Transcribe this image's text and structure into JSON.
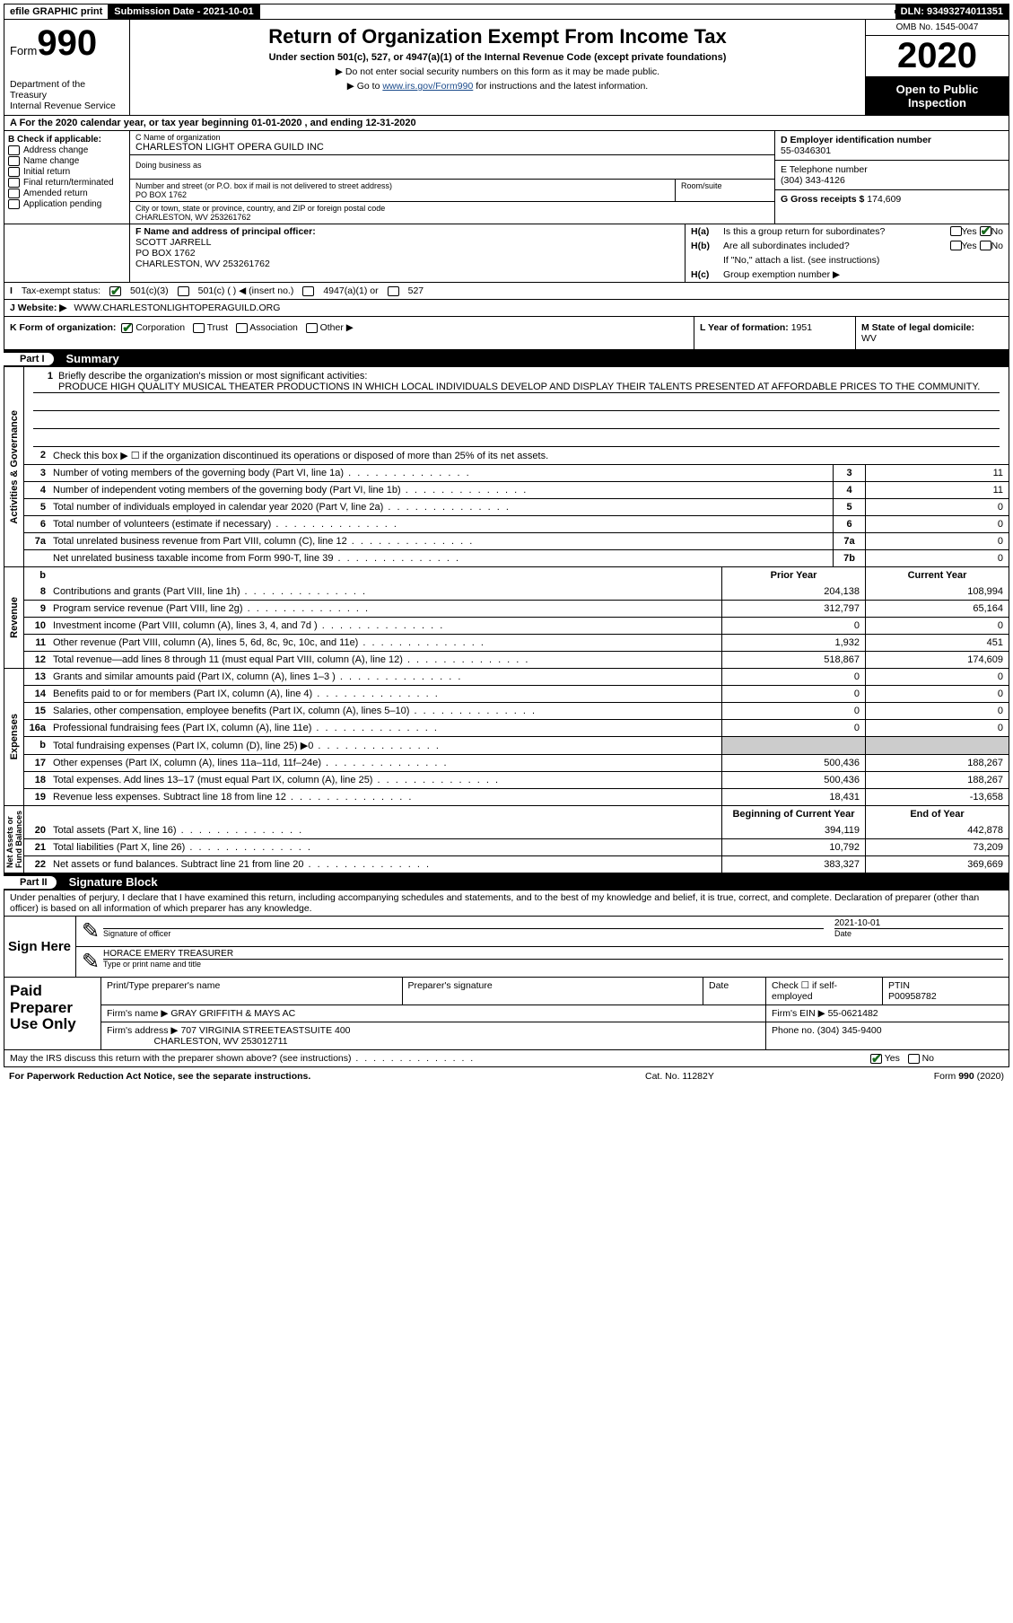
{
  "topbar": {
    "efile": "efile GRAPHIC print",
    "subdate_label": "Submission Date - ",
    "subdate": "2021-10-01",
    "dln_label": "DLN: ",
    "dln": "93493274011351"
  },
  "header": {
    "form_prefix": "Form",
    "form_no": "990",
    "dept": "Department of the Treasury\nInternal Revenue Service",
    "title": "Return of Organization Exempt From Income Tax",
    "sub1": "Under section 501(c), 527, or 4947(a)(1) of the Internal Revenue Code (except private foundations)",
    "sub2": "▶ Do not enter social security numbers on this form as it may be made public.",
    "sub3_pre": "▶ Go to ",
    "sub3_link": "www.irs.gov/Form990",
    "sub3_post": " for instructions and the latest information.",
    "omb": "OMB No. 1545-0047",
    "year": "2020",
    "pub": "Open to Public Inspection"
  },
  "rowA": {
    "text": "A For the 2020 calendar year, or tax year beginning 01-01-2020   , and ending 12-31-2020"
  },
  "B": {
    "hdr": "B Check if applicable:",
    "items": [
      "Address change",
      "Name change",
      "Initial return",
      "Final return/terminated",
      "Amended return",
      "Application pending"
    ]
  },
  "C": {
    "name_lbl": "C Name of organization",
    "name": "CHARLESTON LIGHT OPERA GUILD INC",
    "dba_lbl": "Doing business as",
    "addr_lbl": "Number and street (or P.O. box if mail is not delivered to street address)",
    "addr": "PO BOX 1762",
    "room_lbl": "Room/suite",
    "city_lbl": "City or town, state or province, country, and ZIP or foreign postal code",
    "city": "CHARLESTON, WV  253261762"
  },
  "D": {
    "lbl": "D Employer identification number",
    "val": "55-0346301"
  },
  "E": {
    "lbl": "E Telephone number",
    "val": "(304) 343-4126"
  },
  "G": {
    "lbl": "G Gross receipts $ ",
    "val": "174,609"
  },
  "F": {
    "lbl": "F  Name and address of principal officer:",
    "name": "SCOTT JARRELL",
    "addr1": "PO BOX 1762",
    "addr2": "CHARLESTON, WV  253261762"
  },
  "H": {
    "a": "Is this a group return for subordinates?",
    "b": "Are all subordinates included?",
    "b2": "If \"No,\" attach a list. (see instructions)",
    "c": "Group exemption number ▶",
    "a_yes": "Yes",
    "a_no": "No",
    "b_yes": "Yes",
    "b_no": "No"
  },
  "I": {
    "lbl": "Tax-exempt status:",
    "opts": [
      "501(c)(3)",
      "501(c) (  ) ◀ (insert no.)",
      "4947(a)(1) or",
      "527"
    ]
  },
  "J": {
    "lbl": "J   Website: ▶",
    "val": "WWW.CHARLESTONLIGHTOPERAGUILD.ORG"
  },
  "K": {
    "lbl": "K Form of organization:",
    "opts": [
      "Corporation",
      "Trust",
      "Association",
      "Other ▶"
    ]
  },
  "L": {
    "lbl": "L Year of formation: ",
    "val": "1951"
  },
  "M": {
    "lbl": "M State of legal domicile:",
    "val": "WV"
  },
  "part1": {
    "tag": "Part I",
    "title": "Summary"
  },
  "mission": {
    "q": "Briefly describe the organization's mission or most significant activities:",
    "text": "PRODUCE HIGH QUALITY MUSICAL THEATER PRODUCTIONS IN WHICH LOCAL INDIVIDUALS DEVELOP AND DISPLAY THEIR TALENTS PRESENTED AT AFFORDABLE PRICES TO THE COMMUNITY."
  },
  "gov_lines": [
    {
      "n": "2",
      "t": "Check this box ▶ ☐  if the organization discontinued its operations or disposed of more than 25% of its net assets."
    },
    {
      "n": "3",
      "t": "Number of voting members of the governing body (Part VI, line 1a)",
      "box": "3",
      "v": "11"
    },
    {
      "n": "4",
      "t": "Number of independent voting members of the governing body (Part VI, line 1b)",
      "box": "4",
      "v": "11"
    },
    {
      "n": "5",
      "t": "Total number of individuals employed in calendar year 2020 (Part V, line 2a)",
      "box": "5",
      "v": "0"
    },
    {
      "n": "6",
      "t": "Total number of volunteers (estimate if necessary)",
      "box": "6",
      "v": "0"
    },
    {
      "n": "7a",
      "t": "Total unrelated business revenue from Part VIII, column (C), line 12",
      "box": "7a",
      "v": "0"
    },
    {
      "n": "",
      "t": "Net unrelated business taxable income from Form 990-T, line 39",
      "box": "7b",
      "v": "0"
    }
  ],
  "rev_hdr": {
    "py": "Prior Year",
    "cy": "Current Year"
  },
  "rev_lines": [
    {
      "n": "8",
      "t": "Contributions and grants (Part VIII, line 1h)",
      "py": "204,138",
      "cy": "108,994"
    },
    {
      "n": "9",
      "t": "Program service revenue (Part VIII, line 2g)",
      "py": "312,797",
      "cy": "65,164"
    },
    {
      "n": "10",
      "t": "Investment income (Part VIII, column (A), lines 3, 4, and 7d )",
      "py": "0",
      "cy": "0"
    },
    {
      "n": "11",
      "t": "Other revenue (Part VIII, column (A), lines 5, 6d, 8c, 9c, 10c, and 11e)",
      "py": "1,932",
      "cy": "451"
    },
    {
      "n": "12",
      "t": "Total revenue—add lines 8 through 11 (must equal Part VIII, column (A), line 12)",
      "py": "518,867",
      "cy": "174,609"
    }
  ],
  "exp_lines": [
    {
      "n": "13",
      "t": "Grants and similar amounts paid (Part IX, column (A), lines 1–3 )",
      "py": "0",
      "cy": "0"
    },
    {
      "n": "14",
      "t": "Benefits paid to or for members (Part IX, column (A), line 4)",
      "py": "0",
      "cy": "0"
    },
    {
      "n": "15",
      "t": "Salaries, other compensation, employee benefits (Part IX, column (A), lines 5–10)",
      "py": "0",
      "cy": "0"
    },
    {
      "n": "16a",
      "t": "Professional fundraising fees (Part IX, column (A), line 11e)",
      "py": "0",
      "cy": "0"
    },
    {
      "n": "b",
      "t": "Total fundraising expenses (Part IX, column (D), line 25) ▶0",
      "py": "",
      "cy": "",
      "shade": true
    },
    {
      "n": "17",
      "t": "Other expenses (Part IX, column (A), lines 11a–11d, 11f–24e)",
      "py": "500,436",
      "cy": "188,267"
    },
    {
      "n": "18",
      "t": "Total expenses. Add lines 13–17 (must equal Part IX, column (A), line 25)",
      "py": "500,436",
      "cy": "188,267"
    },
    {
      "n": "19",
      "t": "Revenue less expenses. Subtract line 18 from line 12",
      "py": "18,431",
      "cy": "-13,658"
    }
  ],
  "na_hdr": {
    "b": "Beginning of Current Year",
    "e": "End of Year"
  },
  "na_lines": [
    {
      "n": "20",
      "t": "Total assets (Part X, line 16)",
      "py": "394,119",
      "cy": "442,878"
    },
    {
      "n": "21",
      "t": "Total liabilities (Part X, line 26)",
      "py": "10,792",
      "cy": "73,209"
    },
    {
      "n": "22",
      "t": "Net assets or fund balances. Subtract line 21 from line 20",
      "py": "383,327",
      "cy": "369,669"
    }
  ],
  "vlabels": {
    "gov": "Activities & Governance",
    "rev": "Revenue",
    "exp": "Expenses",
    "na": "Net Assets or\nFund Balances"
  },
  "part2": {
    "tag": "Part II",
    "title": "Signature Block"
  },
  "sig": {
    "decl": "Under penalties of perjury, I declare that I have examined this return, including accompanying schedules and statements, and to the best of my knowledge and belief, it is true, correct, and complete. Declaration of preparer (other than officer) is based on all information of which preparer has any knowledge.",
    "sign_here": "Sign Here",
    "sig_of": "Signature of officer",
    "date_lbl": "Date",
    "date": "2021-10-01",
    "name": "HORACE EMERY TREASURER",
    "name_lbl": "Type or print name and title"
  },
  "paid": {
    "hdr": "Paid Preparer Use Only",
    "p_name_lbl": "Print/Type preparer's name",
    "p_sig_lbl": "Preparer's signature",
    "p_date_lbl": "Date",
    "chk_lbl": "Check ☐ if self-employed",
    "ptin_lbl": "PTIN",
    "ptin": "P00958782",
    "firm_name_lbl": "Firm's name   ▶",
    "firm_name": "GRAY GRIFFITH & MAYS AC",
    "firm_ein_lbl": "Firm's EIN ▶",
    "firm_ein": "55-0621482",
    "firm_addr_lbl": "Firm's address ▶",
    "firm_addr1": "707 VIRGINIA STREETEASTSUITE 400",
    "firm_addr2": "CHARLESTON, WV  253012711",
    "phone_lbl": "Phone no. ",
    "phone": "(304) 345-9400",
    "discuss": "May the IRS discuss this return with the preparer shown above? (see instructions)",
    "yes": "Yes",
    "no": "No"
  },
  "foot": {
    "l": "For Paperwork Reduction Act Notice, see the separate instructions.",
    "m": "Cat. No. 11282Y",
    "r": "Form 990 (2020)"
  }
}
